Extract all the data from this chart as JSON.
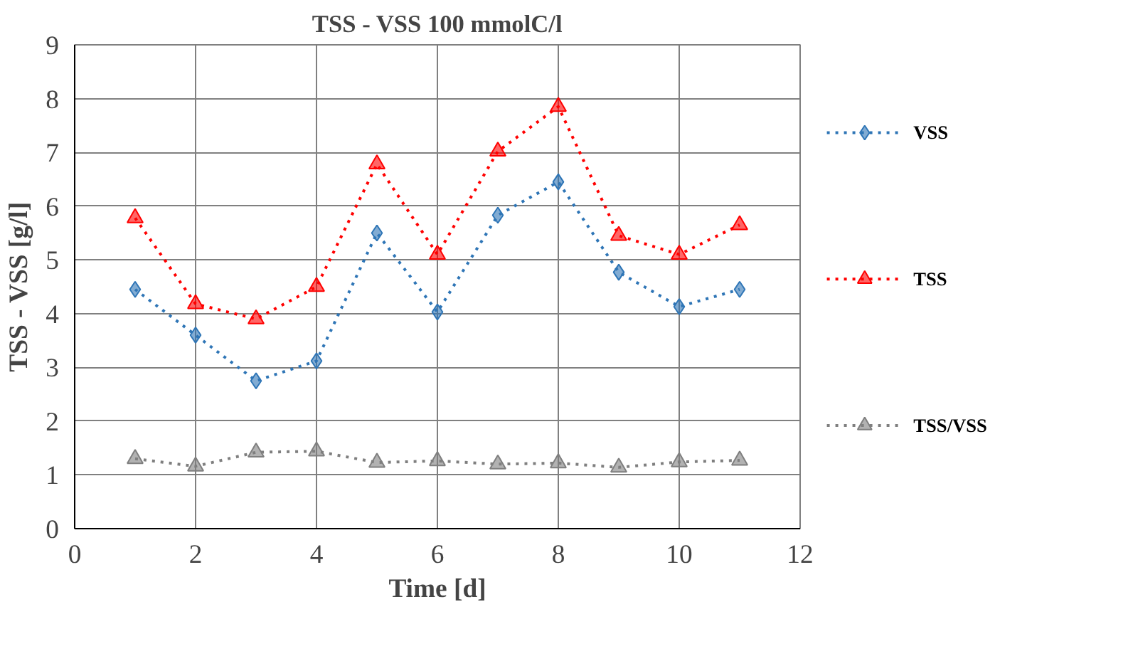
{
  "chart_data": {
    "type": "line",
    "title": "TSS - VSS 100 mmolC/l",
    "xlabel": "Time [d]",
    "ylabel": "TSS - VSS [g/l]",
    "x": [
      1,
      2,
      3,
      4,
      5,
      6,
      7,
      8,
      9,
      10,
      11
    ],
    "series": [
      {
        "name": "VSS",
        "color": "#2e75b6",
        "marker": "diamond",
        "values": [
          4.45,
          3.6,
          2.75,
          3.12,
          5.5,
          4.03,
          5.83,
          6.45,
          4.77,
          4.13,
          4.45
        ]
      },
      {
        "name": "TSS",
        "color": "#ff0000",
        "marker": "triangle",
        "values": [
          5.78,
          4.18,
          3.9,
          4.5,
          6.78,
          5.1,
          7.02,
          7.85,
          5.45,
          5.1,
          5.65
        ]
      },
      {
        "name": "TSS/VSS",
        "color": "#7f7f7f",
        "marker": "triangle",
        "values": [
          1.3,
          1.16,
          1.42,
          1.44,
          1.23,
          1.26,
          1.2,
          1.22,
          1.14,
          1.24,
          1.27
        ]
      }
    ],
    "xlim": [
      0,
      12
    ],
    "xticks": [
      0,
      2,
      4,
      6,
      8,
      10,
      12
    ],
    "ylim": [
      0,
      9
    ],
    "yticks": [
      0,
      1,
      2,
      3,
      4,
      5,
      6,
      7,
      8,
      9
    ],
    "grid": true,
    "legend": "right",
    "line_style": "dotted"
  }
}
